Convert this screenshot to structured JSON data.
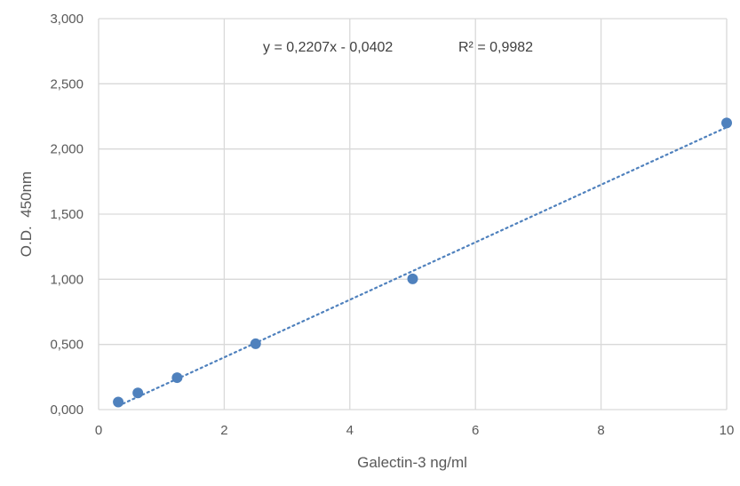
{
  "chart_data": {
    "type": "scatter",
    "xlabel": "Galectin-3 ng/ml",
    "ylabel": "O.D.  450nm",
    "xlim": [
      0,
      10
    ],
    "ylim": [
      0,
      3
    ],
    "x_ticks": [
      0,
      2,
      4,
      6,
      8,
      10
    ],
    "x_tick_labels": [
      "0",
      "2",
      "4",
      "6",
      "8",
      "10"
    ],
    "y_ticks": [
      0,
      0.5,
      1,
      1.5,
      2,
      2.5,
      3
    ],
    "y_tick_labels": [
      "0,000",
      "0,500",
      "1,000",
      "1,500",
      "2,000",
      "2,500",
      "3,000"
    ],
    "grid": true,
    "series": [
      {
        "x": [
          0.3125,
          0.625,
          1.25,
          2.5,
          5,
          10
        ],
        "y": [
          0.058,
          0.128,
          0.245,
          0.505,
          1.003,
          2.2
        ],
        "color": "#4f81bd"
      }
    ],
    "trendline": {
      "slope": 0.2207,
      "intercept": -0.0402,
      "style": "dotted",
      "color": "#4f81bd",
      "x_range": [
        0.3125,
        10
      ]
    },
    "annotations": {
      "equation": "y = 0,2207x - 0,0402",
      "r_squared": "R² = 0,9982"
    }
  }
}
